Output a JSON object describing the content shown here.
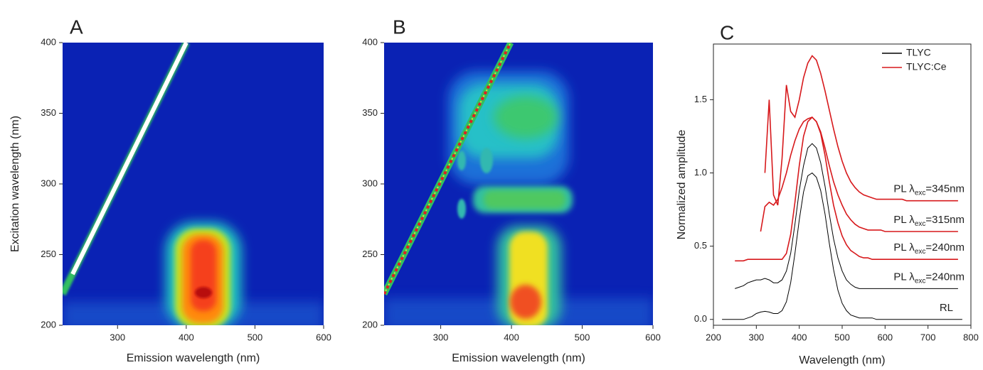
{
  "chart_data": [
    {
      "type": "heatmap",
      "title": "A",
      "xlabel": "Emission wavelength (nm)",
      "ylabel": "Excitation wavelength (nm)",
      "xlim": [
        220,
        600
      ],
      "xticks": [
        300,
        400,
        500,
        600
      ],
      "ylim": [
        200,
        400
      ],
      "yticks": [
        200,
        250,
        300,
        350,
        400
      ]
    },
    {
      "type": "heatmap",
      "title": "B",
      "xlabel": "Emission wavelength (nm)",
      "xlim": [
        220,
        600
      ],
      "xticks": [
        300,
        400,
        500,
        600
      ],
      "ylim": [
        200,
        400
      ],
      "yticks": [
        200,
        250,
        300,
        350,
        400
      ]
    },
    {
      "type": "line",
      "title": "C",
      "xlabel": "Wavelength (nm)",
      "ylabel": "Normalized amplitude",
      "xlim": [
        200,
        800
      ],
      "xticks": [
        200,
        300,
        400,
        500,
        600,
        700,
        800
      ],
      "ylim": [
        -0.04,
        1.88
      ],
      "yticks": [
        {
          "value": 0,
          "label": "0.0"
        },
        {
          "value": 0.5,
          "label": "0.5"
        },
        {
          "value": 1,
          "label": "1.0"
        },
        {
          "value": 1.5,
          "label": "1.5"
        }
      ],
      "x": [
        220,
        230,
        240,
        250,
        260,
        270,
        280,
        290,
        300,
        310,
        320,
        330,
        340,
        350,
        360,
        370,
        380,
        390,
        400,
        410,
        420,
        430,
        440,
        450,
        460,
        470,
        480,
        490,
        500,
        510,
        520,
        530,
        540,
        550,
        560,
        570,
        580,
        590,
        600,
        610,
        620,
        630,
        640,
        650,
        660,
        670,
        680,
        690,
        700,
        710,
        720,
        730,
        740,
        750,
        760,
        770,
        780
      ],
      "series": [
        {
          "name": "TLYC",
          "color": "#000000",
          "curves": [
            {
              "label": [
                "RL"
              ],
              "values": [
                0,
                0,
                0,
                0,
                0,
                0,
                0.01,
                0.02,
                0.04,
                0.05,
                0.055,
                0.05,
                0.04,
                0.04,
                0.06,
                0.12,
                0.25,
                0.45,
                0.68,
                0.87,
                0.98,
                1.0,
                0.97,
                0.88,
                0.72,
                0.52,
                0.34,
                0.2,
                0.11,
                0.06,
                0.03,
                0.02,
                0.01,
                0.01,
                0.01,
                0.01,
                0,
                0,
                0,
                0,
                0,
                0,
                0,
                0,
                0,
                0,
                0,
                0,
                0,
                0,
                0,
                0,
                0,
                0,
                0,
                0,
                0
              ]
            },
            {
              "label": [
                "PL λ",
                "exc",
                "=240nm"
              ],
              "values": [
                null,
                null,
                null,
                0.21,
                0.22,
                0.23,
                0.25,
                0.26,
                0.27,
                0.27,
                0.28,
                0.27,
                0.25,
                0.25,
                0.27,
                0.33,
                0.45,
                0.65,
                0.88,
                1.05,
                1.17,
                1.2,
                1.17,
                1.07,
                0.91,
                0.72,
                0.55,
                0.42,
                0.33,
                0.27,
                0.24,
                0.22,
                0.21,
                0.21,
                0.21,
                0.21,
                0.21,
                0.21,
                0.21,
                0.21,
                0.21,
                0.21,
                0.21,
                0.21,
                0.21,
                0.21,
                0.21,
                0.21,
                0.21,
                0.21,
                0.21,
                0.21,
                0.21,
                0.21,
                0.21,
                0.21,
                null
              ]
            }
          ]
        },
        {
          "name": "TLYC:Ce",
          "color": "#d7191c",
          "curves": [
            {
              "label": [
                "PL λ",
                "exc",
                "=240nm"
              ],
              "values": [
                null,
                null,
                null,
                0.4,
                0.4,
                0.4,
                0.41,
                0.41,
                0.41,
                0.41,
                0.41,
                0.41,
                0.41,
                0.41,
                0.41,
                0.45,
                0.58,
                0.8,
                1.05,
                1.25,
                1.35,
                1.38,
                1.35,
                1.27,
                1.12,
                0.94,
                0.78,
                0.66,
                0.57,
                0.51,
                0.47,
                0.45,
                0.43,
                0.42,
                0.42,
                0.41,
                0.41,
                0.41,
                0.41,
                0.41,
                0.41,
                0.41,
                0.41,
                0.41,
                0.41,
                0.41,
                0.41,
                0.41,
                0.41,
                0.41,
                0.41,
                0.41,
                0.41,
                0.41,
                0.41,
                0.41,
                null
              ]
            },
            {
              "label": [
                "PL λ",
                "exc",
                "=315nm"
              ],
              "values": [
                null,
                null,
                null,
                null,
                null,
                null,
                null,
                null,
                null,
                0.6,
                0.77,
                0.8,
                0.78,
                0.82,
                0.9,
                1.0,
                1.12,
                1.22,
                1.3,
                1.35,
                1.37,
                1.38,
                1.35,
                1.28,
                1.17,
                1.05,
                0.94,
                0.85,
                0.78,
                0.72,
                0.68,
                0.65,
                0.63,
                0.62,
                0.61,
                0.61,
                0.61,
                0.61,
                0.6,
                0.6,
                0.6,
                0.6,
                0.6,
                0.6,
                0.6,
                0.6,
                0.6,
                0.6,
                0.6,
                0.6,
                0.6,
                0.6,
                0.6,
                0.6,
                0.6,
                0.6,
                null
              ]
            },
            {
              "label": [
                "PL λ",
                "exc",
                "=345nm"
              ],
              "values": [
                null,
                null,
                null,
                null,
                null,
                null,
                null,
                null,
                null,
                null,
                1.0,
                1.5,
                0.85,
                0.78,
                1.1,
                1.6,
                1.42,
                1.38,
                1.5,
                1.65,
                1.75,
                1.8,
                1.77,
                1.68,
                1.56,
                1.43,
                1.3,
                1.18,
                1.08,
                1.0,
                0.94,
                0.9,
                0.87,
                0.85,
                0.84,
                0.83,
                0.82,
                0.82,
                0.82,
                0.82,
                0.82,
                0.82,
                0.82,
                0.81,
                0.81,
                0.81,
                0.81,
                0.81,
                0.81,
                0.81,
                0.81,
                0.81,
                0.81,
                0.81,
                0.81,
                0.81,
                null
              ]
            }
          ]
        }
      ],
      "legend": "upper right"
    }
  ]
}
